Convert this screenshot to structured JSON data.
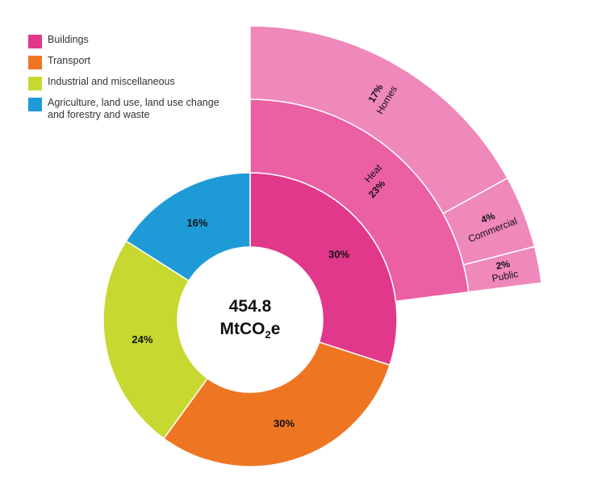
{
  "chart_data": {
    "type": "sunburst-donut",
    "center_label": {
      "value": "454.8",
      "unit_main": "MtCO",
      "unit_sub": "2",
      "unit_tail": "e"
    },
    "legend": [
      {
        "label": "Buildings",
        "color": "#e2388b"
      },
      {
        "label": "Transport",
        "color": "#ee7623"
      },
      {
        "label": "Industrial and miscellaneous",
        "color": "#c7d830"
      },
      {
        "label": "Agriculture, land use, land use change and forestry and waste",
        "color": "#1e9bd7"
      }
    ],
    "sectors": [
      {
        "name": "Buildings",
        "value": 30,
        "label": "30%",
        "color": "#e2388b"
      },
      {
        "name": "Transport",
        "value": 30,
        "label": "30%",
        "color": "#ee7623"
      },
      {
        "name": "Industrial and miscellaneous",
        "value": 24,
        "label": "24%",
        "color": "#c7d830"
      },
      {
        "name": "Agriculture, land use, land use change and forestry and waste",
        "value": 16,
        "label": "16%",
        "color": "#1e9bd7"
      }
    ],
    "breakdown": {
      "parent": "Buildings",
      "level1": {
        "name": "Heat",
        "value": 23,
        "label": "23%",
        "color": "#eb5fa3"
      },
      "level2": [
        {
          "name": "Homes",
          "value": 17,
          "label": "17%",
          "color": "#ef88bb"
        },
        {
          "name": "Commercial",
          "value": 4,
          "label": "4%",
          "color": "#ef88bb"
        },
        {
          "name": "Public",
          "value": 2,
          "label": "2%",
          "color": "#ef88bb"
        }
      ]
    }
  }
}
